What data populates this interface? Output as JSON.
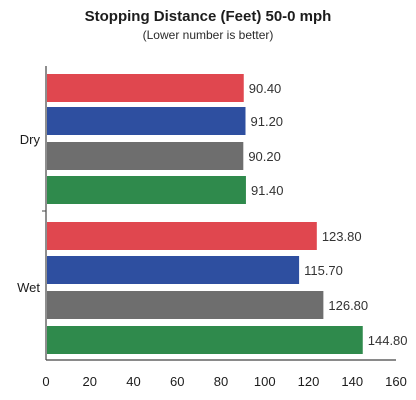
{
  "chart_data": {
    "type": "bar",
    "orientation": "horizontal",
    "title": "Stopping Distance (Feet) 50-0 mph",
    "subtitle": "(Lower number is better)",
    "categories": [
      "Dry",
      "Wet"
    ],
    "bars": [
      {
        "category": "Dry",
        "value": 90.4,
        "label": "90.40",
        "color": "#e0474f"
      },
      {
        "category": "Dry",
        "value": 91.2,
        "label": "91.20",
        "color": "#2e4fa0"
      },
      {
        "category": "Dry",
        "value": 90.2,
        "label": "90.20",
        "color": "#6e6e6e"
      },
      {
        "category": "Dry",
        "value": 91.4,
        "label": "91.40",
        "color": "#2f8a4c"
      },
      {
        "category": "Wet",
        "value": 123.8,
        "label": "123.80",
        "color": "#e0474f"
      },
      {
        "category": "Wet",
        "value": 115.7,
        "label": "115.70",
        "color": "#2e4fa0"
      },
      {
        "category": "Wet",
        "value": 126.8,
        "label": "126.80",
        "color": "#6e6e6e"
      },
      {
        "category": "Wet",
        "value": 144.8,
        "label": "144.80",
        "color": "#2f8a4c"
      }
    ],
    "x_ticks": [
      "0",
      "20",
      "40",
      "60",
      "80",
      "100",
      "120",
      "140",
      "160"
    ],
    "xlim": [
      0,
      160
    ],
    "grid": false,
    "legend": "none"
  }
}
